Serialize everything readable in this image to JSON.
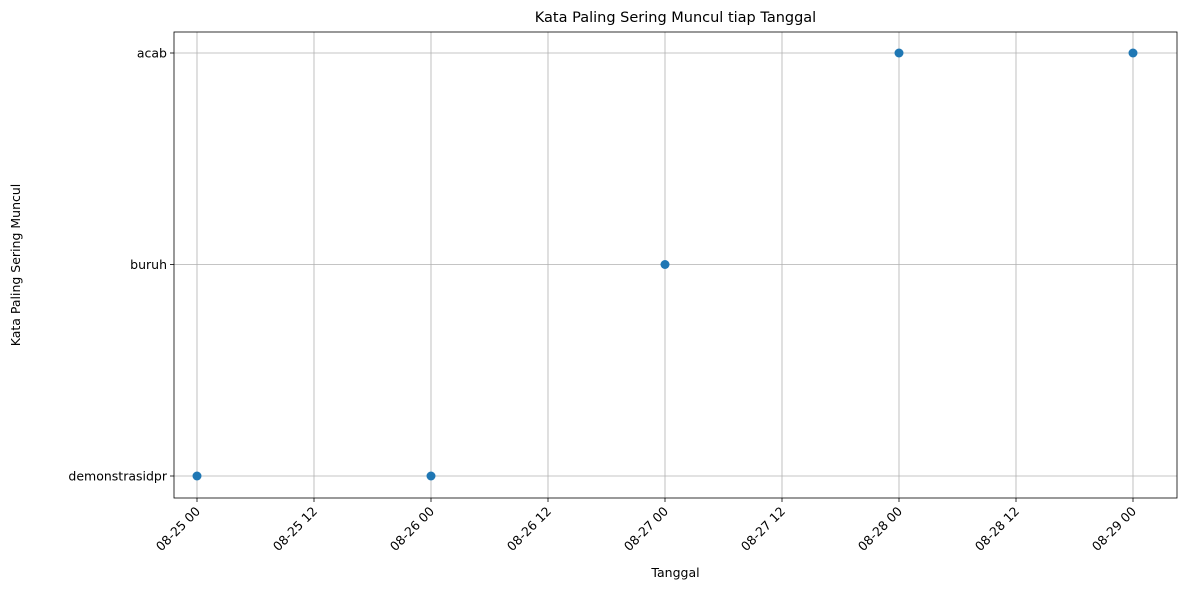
{
  "chart_data": {
    "type": "scatter",
    "title": "Kata Paling Sering Muncul tiap Tanggal",
    "xlabel": "Tanggal",
    "ylabel": "Kata Paling Sering Muncul",
    "x_ticks": [
      "08-25 00",
      "08-25 12",
      "08-26 00",
      "08-26 12",
      "08-27 00",
      "08-27 12",
      "08-28 00",
      "08-28 12",
      "08-29 00"
    ],
    "y_categories": [
      "demonstrasidpr",
      "buruh",
      "acab"
    ],
    "series": [
      {
        "points": [
          {
            "x": "08-25 00",
            "y": "demonstrasidpr"
          },
          {
            "x": "08-26 00",
            "y": "demonstrasidpr"
          },
          {
            "x": "08-27 00",
            "y": "buruh"
          },
          {
            "x": "08-28 00",
            "y": "acab"
          },
          {
            "x": "08-29 00",
            "y": "acab"
          }
        ]
      }
    ],
    "grid": true,
    "x_tick_rotation": 45,
    "marker_color": "#1f77b4",
    "grid_color": "#b0b0b0"
  }
}
